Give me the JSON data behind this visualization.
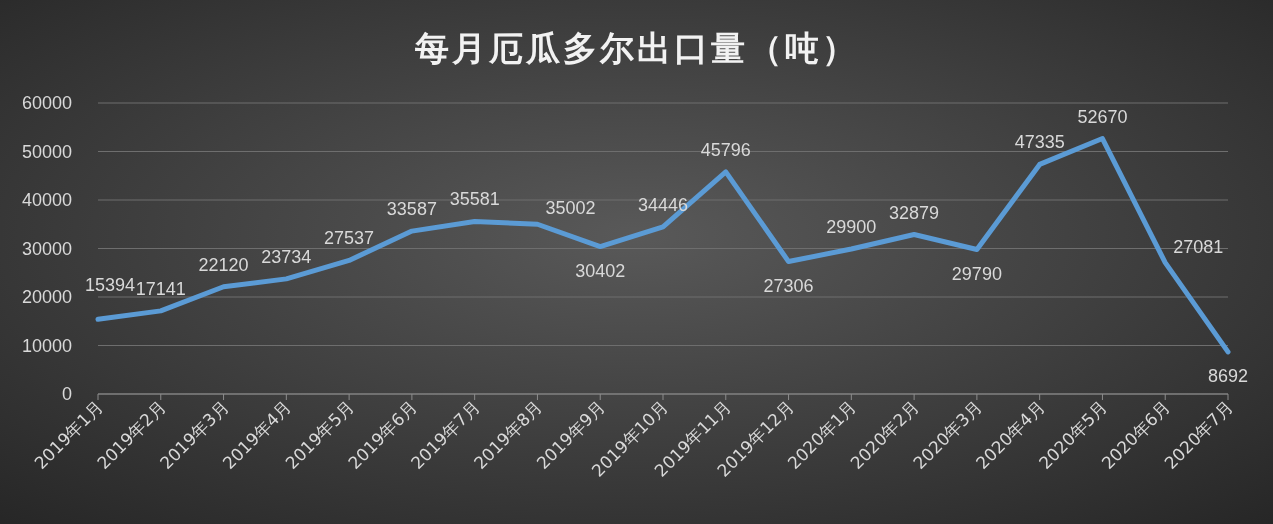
{
  "chart_data": {
    "type": "line",
    "title": "每月厄瓜多尔出口量（吨）",
    "categories": [
      "2019年1月",
      "2019年2月",
      "2019年3月",
      "2019年4月",
      "2019年5月",
      "2019年6月",
      "2019年7月",
      "2019年8月",
      "2019年9月",
      "2019年10月",
      "2019年11月",
      "2019年12月",
      "2020年1月",
      "2020年2月",
      "2020年3月",
      "2020年4月",
      "2020年5月",
      "2020年6月",
      "2020年7月"
    ],
    "series": [
      {
        "color": "#5b9bd5",
        "values": [
          15394,
          17141,
          22120,
          23734,
          27537,
          33587,
          35581,
          35002,
          30402,
          34446,
          45796,
          27306,
          29900,
          32879,
          29790,
          47335,
          52670,
          27081,
          8692
        ]
      }
    ],
    "ylim": [
      0,
      60000
    ],
    "yticks": [
      0,
      10000,
      20000,
      30000,
      40000,
      50000,
      60000
    ],
    "grid": "y",
    "data_labels": true,
    "marker": "none",
    "line_style": "solid"
  }
}
